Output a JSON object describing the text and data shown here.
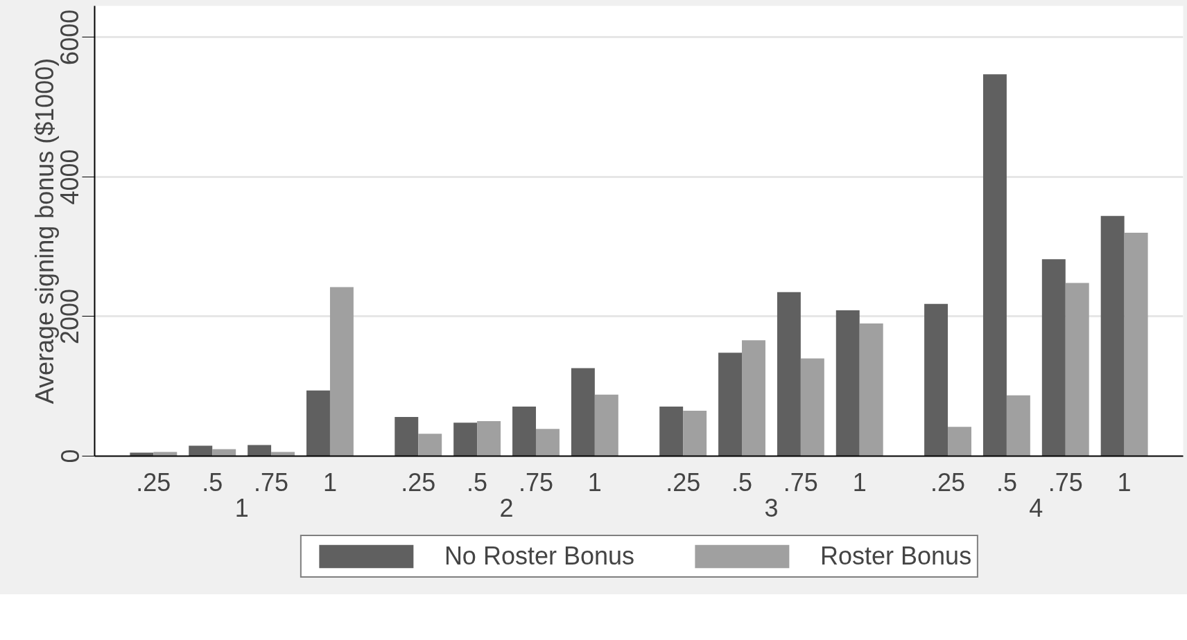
{
  "chart_data": {
    "type": "bar",
    "ylabel": "Average signing bonus ($1000)",
    "categories": [
      ".25",
      ".5",
      ".75",
      "1",
      ".25",
      ".5",
      ".75",
      "1",
      ".25",
      ".5",
      ".75",
      "1",
      ".25",
      ".5",
      ".75",
      "1"
    ],
    "annotations": [
      "1",
      "2",
      "3",
      "4"
    ],
    "series": [
      {
        "name": "No Roster Bonus",
        "color": "#606060",
        "values": [
          50,
          150,
          160,
          940,
          560,
          480,
          710,
          1260,
          710,
          1480,
          2350,
          2090,
          2180,
          5470,
          2820,
          3440
        ]
      },
      {
        "name": "Roster Bonus",
        "color": "#a0a0a0",
        "values": [
          60,
          100,
          60,
          2420,
          320,
          500,
          390,
          880,
          650,
          1660,
          1400,
          1900,
          420,
          870,
          2480,
          3200
        ]
      }
    ],
    "ylim": [
      0,
      6450
    ],
    "yticks": [
      0,
      2000,
      4000,
      6000
    ],
    "grid": "y",
    "legend": "bottom"
  }
}
